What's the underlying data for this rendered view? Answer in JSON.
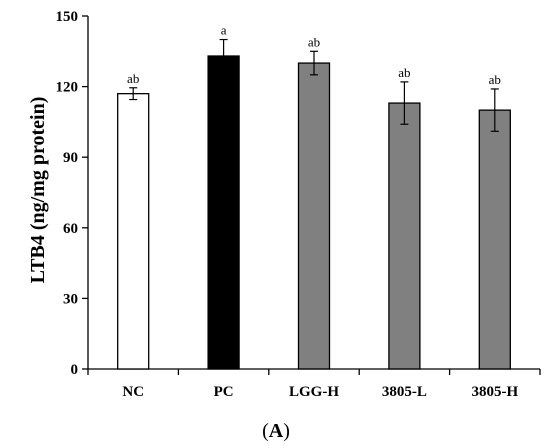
{
  "chart_data": {
    "type": "bar",
    "ylabel": "LTB4 (ng/mg protein)",
    "panel_label": {
      "open": "(",
      "letter": "A",
      "close": ")"
    },
    "ylim": [
      0,
      150
    ],
    "yticks": [
      0,
      30,
      60,
      90,
      120,
      150
    ],
    "grid": false,
    "categories": [
      "NC",
      "PC",
      "LGG-H",
      "3805-L",
      "3805-H"
    ],
    "values": [
      117,
      133,
      130,
      113,
      110
    ],
    "errors": [
      2.5,
      7,
      5,
      9,
      9
    ],
    "significance": [
      "ab",
      "a",
      "ab",
      "ab",
      "ab"
    ],
    "bar_fills": [
      "#ffffff",
      "#000000",
      "#808080",
      "#808080",
      "#808080"
    ]
  }
}
